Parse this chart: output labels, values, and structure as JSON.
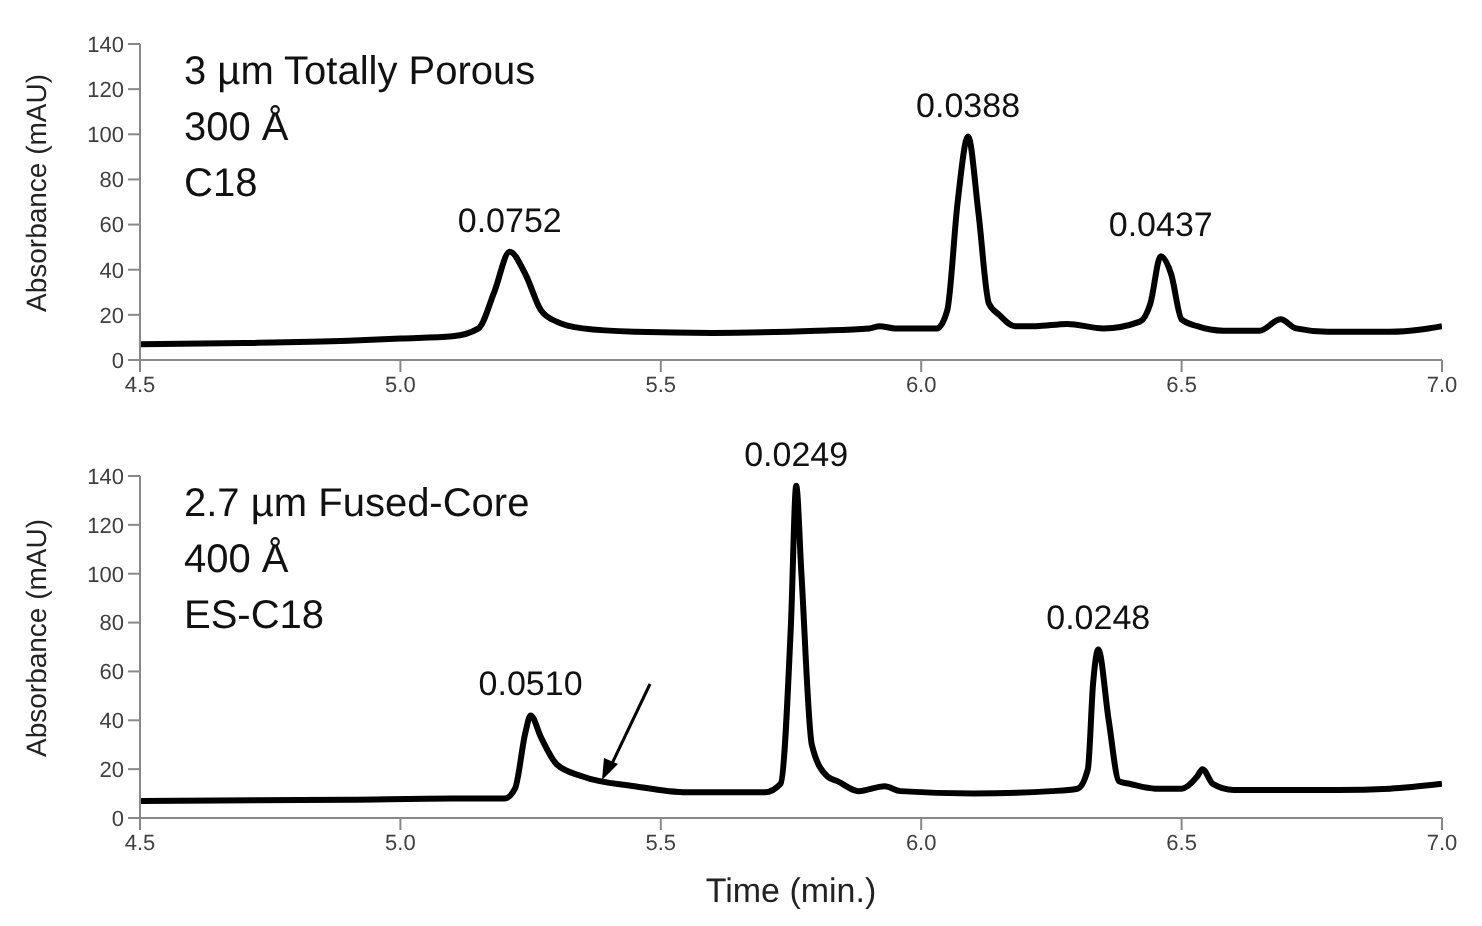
{
  "chart_data": [
    {
      "type": "line",
      "ylabel": "Absorbance (mAU)",
      "grid": false,
      "marker": "none",
      "line_style": "solid",
      "annotations": [
        "3 µm Totally Porous",
        "300 Å",
        "C18",
        {
          "text": "0.0752",
          "x": 5.21,
          "y": 48
        },
        {
          "text": "0.0388",
          "x": 6.09,
          "y": 99
        },
        {
          "text": "0.0437",
          "x": 6.46,
          "y": 46
        }
      ],
      "x": [
        4.5,
        4.7,
        4.9,
        5.0,
        5.1,
        5.15,
        5.18,
        5.21,
        5.24,
        5.27,
        5.3,
        5.35,
        5.45,
        5.6,
        5.8,
        5.9,
        5.92,
        5.95,
        6.03,
        6.05,
        6.07,
        6.09,
        6.11,
        6.13,
        6.15,
        6.18,
        6.22,
        6.28,
        6.35,
        6.42,
        6.44,
        6.46,
        6.48,
        6.5,
        6.53,
        6.58,
        6.65,
        6.69,
        6.72,
        6.78,
        6.9,
        6.96,
        7.0
      ],
      "series": [
        {
          "color": "#000000",
          "values": [
            7,
            7.5,
            8.5,
            9.5,
            10.5,
            14,
            30,
            48,
            38,
            22,
            17,
            14,
            12.5,
            12,
            13,
            14,
            15,
            14,
            14,
            22,
            70,
            99,
            65,
            25,
            20,
            15,
            15,
            16,
            14,
            17,
            25,
            46,
            38,
            18,
            15,
            13,
            13,
            18,
            14,
            12.5,
            12.5,
            13.5,
            15
          ]
        }
      ],
      "xlim": [
        4.5,
        7.0
      ],
      "xticks": [
        4.5,
        {
          "value": 5,
          "label": "5.0"
        },
        5.5,
        {
          "value": 6,
          "label": "6.0"
        },
        6.5,
        {
          "value": 7,
          "label": "7.0"
        }
      ],
      "ylim": [
        0,
        140
      ],
      "yticks": [
        0,
        20,
        40,
        60,
        80,
        100,
        120,
        140
      ]
    },
    {
      "type": "line",
      "xlabel": "Time (min.)",
      "ylabel": "Absorbance (mAU)",
      "grid": false,
      "marker": "none",
      "line_style": "solid",
      "annotations": [
        "2.7 µm Fused-Core",
        "400 Å",
        "ES-C18",
        {
          "text": "0.0510",
          "x": 5.25,
          "y": 42
        },
        {
          "text": "0.0249",
          "x": 5.76,
          "y": 136
        },
        {
          "text": "0.0248",
          "x": 6.34,
          "y": 69
        }
      ],
      "x": [
        4.5,
        4.9,
        5.1,
        5.2,
        5.22,
        5.24,
        5.25,
        5.27,
        5.3,
        5.35,
        5.45,
        5.55,
        5.7,
        5.73,
        5.75,
        5.76,
        5.77,
        5.79,
        5.82,
        5.84,
        5.88,
        5.93,
        5.96,
        6.1,
        6.25,
        6.3,
        6.32,
        6.33,
        6.34,
        6.36,
        6.38,
        6.4,
        6.45,
        6.5,
        6.53,
        6.54,
        6.56,
        6.6,
        6.8,
        6.9,
        7.0
      ],
      "series": [
        {
          "color": "#000000",
          "values": [
            7,
            7.5,
            8,
            8,
            12,
            35,
            42,
            33,
            22,
            17,
            13,
            10.5,
            10.5,
            14,
            80,
            136,
            100,
            30,
            17,
            15,
            11,
            13,
            11,
            10,
            11,
            12,
            20,
            55,
            69,
            40,
            15,
            14,
            12,
            12,
            17,
            20,
            14,
            11.5,
            11.5,
            12,
            14
          ]
        }
      ],
      "xlim": [
        4.5,
        7.0
      ],
      "xticks": [
        4.5,
        {
          "value": 5,
          "label": "5.0"
        },
        5.5,
        {
          "value": 6,
          "label": "6.0"
        },
        6.5,
        {
          "value": 7,
          "label": "7.0"
        }
      ],
      "ylim": [
        0,
        140
      ],
      "yticks": [
        0,
        20,
        40,
        60,
        80,
        100,
        120,
        140
      ]
    }
  ]
}
